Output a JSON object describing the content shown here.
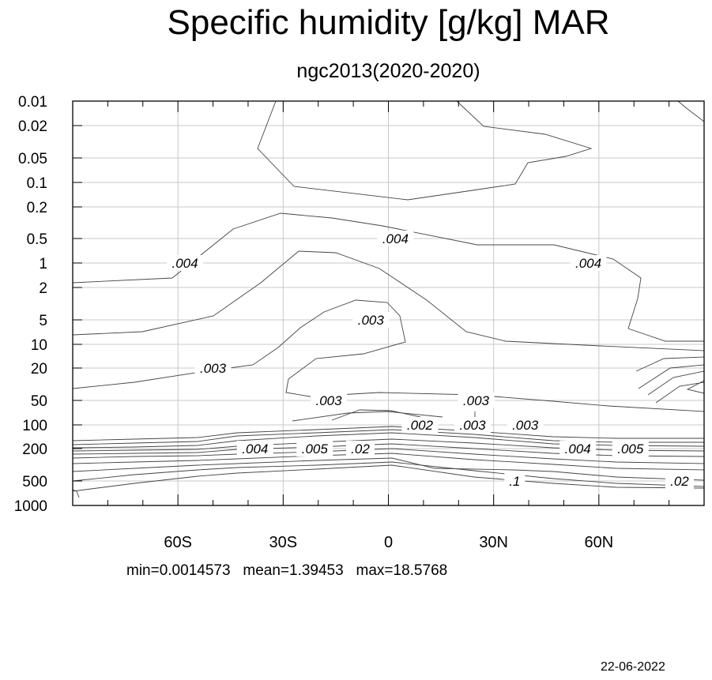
{
  "title": "Specific humidity [g/kg] MAR",
  "subtitle": "ngc2013(2020-2020)",
  "stats": {
    "min_label": "min=0.0014573",
    "mean_label": "mean=1.39453",
    "max_label": "max=18.5768"
  },
  "date": "22-06-2022",
  "chart_data": {
    "type": "contour",
    "title": "Specific humidity [g/kg] MAR",
    "subtitle": "ngc2013(2020-2020)",
    "x_axis": {
      "label": "",
      "range": [
        -90,
        90
      ],
      "ticks": [
        -60,
        -30,
        0,
        30,
        60
      ],
      "tick_labels": [
        "60S",
        "30S",
        "0",
        "30N",
        "60N"
      ]
    },
    "y_axis": {
      "label": "",
      "scale": "pressure levels, inverted",
      "levels": [
        0.01,
        0.02,
        0.05,
        0.1,
        0.2,
        0.5,
        1,
        2,
        5,
        10,
        20,
        50,
        100,
        200,
        500,
        1000
      ],
      "tick_labels": [
        "0.01",
        "0.02",
        "0.05",
        "0.1",
        "0.2",
        "0.5",
        "1",
        "2",
        "5",
        "10",
        "20",
        "50",
        "100",
        "200",
        "500",
        "1000"
      ]
    },
    "grid": true,
    "contour_labels": [
      {
        "text": ".004",
        "lat": -58,
        "level": 1
      },
      {
        "text": ".004",
        "lat": 2,
        "level": 0.5
      },
      {
        "text": ".004",
        "lat": 57,
        "level": 1
      },
      {
        "text": ".003",
        "lat": -5,
        "level": 5
      },
      {
        "text": ".003",
        "lat": -50,
        "level": 20
      },
      {
        "text": ".003",
        "lat": -17,
        "level": 50
      },
      {
        "text": ".003",
        "lat": 25,
        "level": 50
      },
      {
        "text": ".002",
        "lat": 9,
        "level": 100
      },
      {
        "text": ".004",
        "lat": -38,
        "level": 200
      },
      {
        "text": ".005",
        "lat": -21,
        "level": 200
      },
      {
        "text": ".02",
        "lat": -8,
        "level": 200
      },
      {
        "text": ".003",
        "lat": 24,
        "level": 100
      },
      {
        "text": ".003",
        "lat": 39,
        "level": 100
      },
      {
        "text": ".004",
        "lat": 54,
        "level": 200
      },
      {
        "text": ".005",
        "lat": 69,
        "level": 200
      },
      {
        "text": ".1",
        "lat": 36,
        "level": 500
      },
      {
        "text": ".02",
        "lat": 83,
        "level": 500
      }
    ],
    "statistics": {
      "min": 0.0014573,
      "mean": 1.39453,
      "max": 18.5768
    }
  }
}
